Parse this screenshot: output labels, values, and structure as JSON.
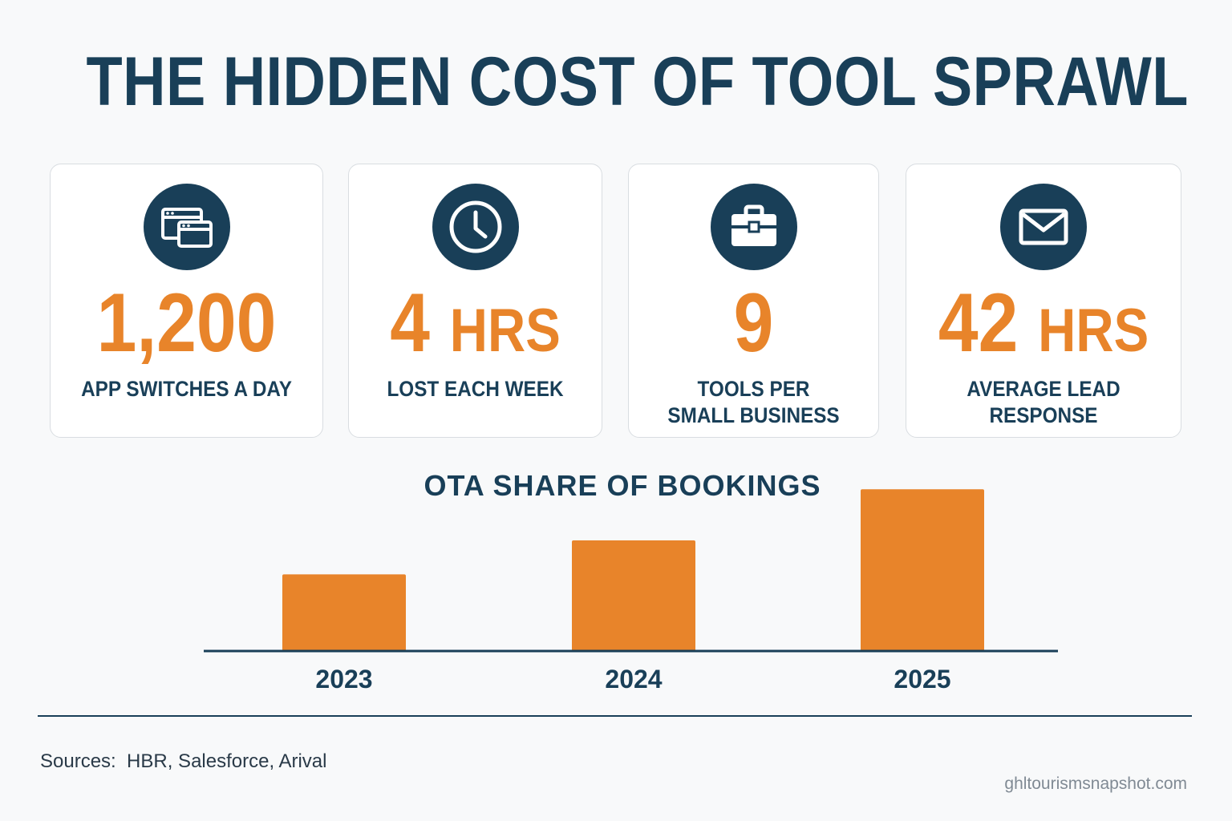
{
  "title": "THE HIDDEN COST OF TOOL SPRAWL",
  "colors": {
    "navy": "#193f58",
    "orange": "#e8842a",
    "background": "#f8f9fa",
    "card_border": "#d9dde1"
  },
  "stats": [
    {
      "icon": "browser-windows-icon",
      "value": "1,200",
      "unit": "",
      "label": "APP SWITCHES A DAY"
    },
    {
      "icon": "clock-icon",
      "value": "4",
      "unit": "HRS",
      "label": "LOST EACH WEEK"
    },
    {
      "icon": "briefcase-icon",
      "value": "9",
      "unit": "",
      "label": "TOOLS PER SMALL BUSINESS"
    },
    {
      "icon": "envelope-icon",
      "value": "42",
      "unit": "HRS",
      "label": "AVERAGE LEAD RESPONSE"
    }
  ],
  "chart_data": {
    "type": "bar",
    "title": "OTA SHARE OF BOOKINGS",
    "categories": [
      "2023",
      "2024",
      "2025"
    ],
    "values": [
      18,
      26,
      38
    ],
    "xlabel": "",
    "ylabel": "",
    "ylim": [
      0,
      42
    ],
    "grid": false,
    "bar_color": "#e8842a"
  },
  "footer": {
    "sources": "Sources:  HBR, Salesforce, Arival",
    "site": "ghltourismsnapshot.com"
  }
}
